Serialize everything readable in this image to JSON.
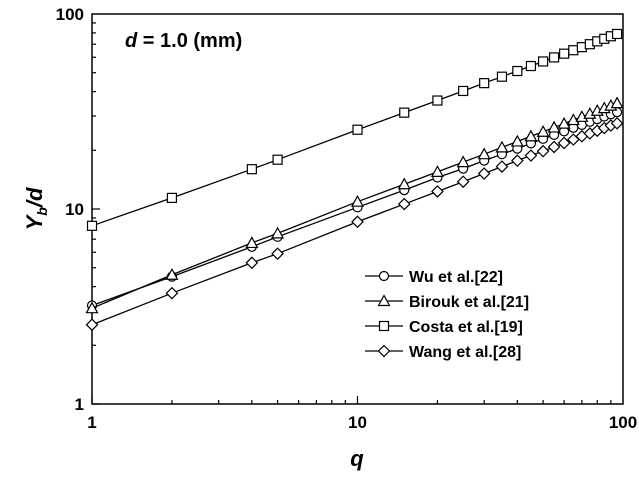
{
  "chart_data": {
    "type": "line",
    "annotation": {
      "var": "d",
      "rest": " = 1.0 (mm)"
    },
    "xlabel": "q",
    "ylabel": {
      "main": "Y",
      "sub": "b",
      "tail": "/d"
    },
    "xscale": "log",
    "yscale": "log",
    "xlim": [
      1,
      100
    ],
    "ylim": [
      1,
      100
    ],
    "xticks": [
      {
        "value": 1,
        "label": "1"
      },
      {
        "value": 10,
        "label": "10"
      },
      {
        "value": 100,
        "label": "100"
      }
    ],
    "yticks": [
      {
        "value": 1,
        "label": "1"
      },
      {
        "value": 10,
        "label": "10"
      },
      {
        "value": 100,
        "label": "100"
      }
    ],
    "grid": false,
    "legend": "bottom-right",
    "series": [
      {
        "name": "Wu et al.[22]",
        "marker": "circle",
        "x": [
          1,
          2,
          4,
          5,
          10,
          15,
          20,
          25,
          30,
          35,
          40,
          45,
          50,
          55,
          60,
          65,
          70,
          75,
          80,
          85,
          90,
          95
        ],
        "y": [
          3.2,
          4.5,
          6.4,
          7.2,
          10.2,
          12.5,
          14.5,
          16.1,
          17.7,
          19.1,
          20.4,
          21.7,
          22.9,
          24.0,
          25.0,
          26.1,
          27.0,
          28.0,
          28.9,
          29.8,
          30.6,
          31.4
        ]
      },
      {
        "name": "Birouk et al.[21]",
        "marker": "triangle",
        "x": [
          1,
          2,
          4,
          5,
          10,
          15,
          20,
          25,
          30,
          35,
          40,
          45,
          50,
          55,
          60,
          65,
          70,
          75,
          80,
          85,
          90,
          95
        ],
        "y": [
          3.1,
          4.6,
          6.7,
          7.5,
          10.9,
          13.4,
          15.5,
          17.4,
          19.1,
          20.7,
          22.2,
          23.6,
          24.9,
          26.2,
          27.4,
          28.6,
          29.7,
          30.8,
          31.9,
          32.9,
          33.9,
          34.9
        ]
      },
      {
        "name": "Costa et al.[19]",
        "marker": "square",
        "x": [
          1,
          2,
          4,
          5,
          10,
          15,
          20,
          25,
          30,
          35,
          40,
          45,
          50,
          55,
          60,
          65,
          70,
          75,
          80,
          85,
          90,
          95
        ],
        "y": [
          8.2,
          11.4,
          16.0,
          17.9,
          25.5,
          31.2,
          36.0,
          40.3,
          44.2,
          47.7,
          51.0,
          54.1,
          57.1,
          59.9,
          62.6,
          65.2,
          67.6,
          70.0,
          72.4,
          74.6,
          76.9,
          79.0
        ]
      },
      {
        "name": "Wang et al.[28]",
        "marker": "diamond",
        "x": [
          1,
          2,
          4,
          5,
          10,
          15,
          20,
          25,
          30,
          35,
          40,
          45,
          50,
          55,
          60,
          65,
          70,
          75,
          80,
          85,
          90,
          95
        ],
        "y": [
          2.55,
          3.7,
          5.3,
          5.9,
          8.6,
          10.6,
          12.3,
          13.8,
          15.2,
          16.5,
          17.7,
          18.8,
          19.8,
          20.8,
          21.8,
          22.7,
          23.6,
          24.4,
          25.2,
          26.0,
          26.8,
          27.5
        ]
      }
    ]
  }
}
